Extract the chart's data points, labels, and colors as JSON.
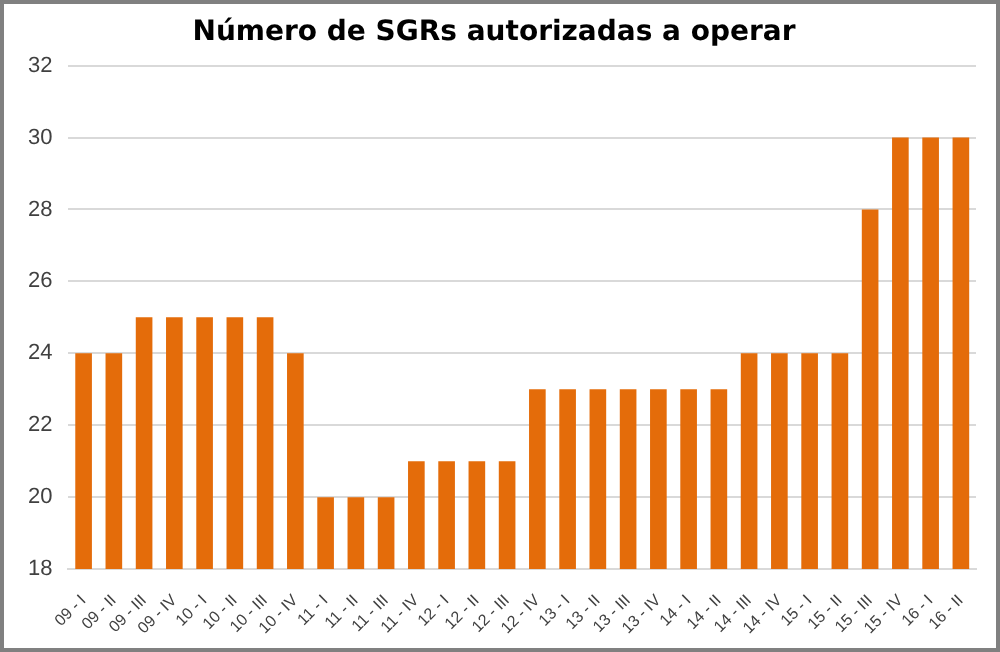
{
  "chart_data": {
    "type": "bar",
    "title": "Número de SGRs autorizadas a operar",
    "categories": [
      "09 - I",
      "09 - II",
      "09 - III",
      "09 - IV",
      "10 - I",
      "10 - II",
      "10 - III",
      "10 - IV",
      "11 - I",
      "11 - II",
      "11 - III",
      "11 - IV",
      "12 - I",
      "12 - II",
      "12 - III",
      "12 - IV",
      "13 - I",
      "13 - II",
      "13 - III",
      "13 - IV",
      "14 - I",
      "14 - II",
      "14 - III",
      "14 - IV",
      "15 - I",
      "15 - II",
      "15 - III",
      "15 - IV",
      "16 - I",
      "16 - II"
    ],
    "values": [
      24,
      24,
      25,
      25,
      25,
      25,
      25,
      24,
      20,
      20,
      20,
      21,
      21,
      21,
      21,
      23,
      23,
      23,
      23,
      23,
      23,
      23,
      24,
      24,
      24,
      24,
      28,
      30,
      30,
      30
    ],
    "color": "#e46c0a",
    "ylim": [
      18,
      32
    ],
    "yticks": [
      18,
      20,
      22,
      24,
      26,
      28,
      30,
      32
    ],
    "grid": "y"
  }
}
